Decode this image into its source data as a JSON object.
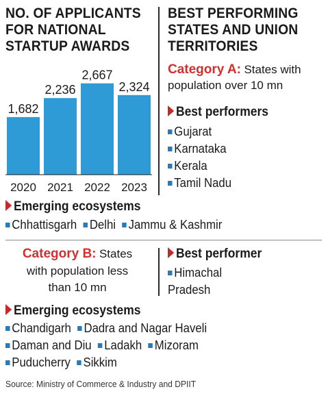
{
  "chart": {
    "title_lines": [
      "NO. OF APPLICANTS",
      "FOR NATIONAL",
      "STARTUP AWARDS"
    ]
  },
  "chart_data": {
    "type": "bar",
    "categories": [
      "2020",
      "2021",
      "2022",
      "2023"
    ],
    "values": [
      1682,
      2236,
      2667,
      2324
    ],
    "value_labels": [
      "1,682",
      "2,236",
      "2,667",
      "2,324"
    ],
    "title": "NO. OF APPLICANTS FOR NATIONAL STARTUP AWARDS",
    "xlabel": "",
    "ylabel": "",
    "ylim": [
      0,
      3000
    ],
    "grid": false,
    "bar_color": "#2e9bd6"
  },
  "right": {
    "title_lines": [
      "BEST PERFORMING",
      "STATES AND UNION",
      "TERRITORIES"
    ],
    "category_a_label": "Category A:",
    "category_a_text_1": "States with",
    "category_a_text_2": "population over 10 mn",
    "best_performers_heading": "Best performers",
    "best_performers": [
      "Gujarat",
      "Karnataka",
      "Kerala",
      "Tamil Nadu"
    ]
  },
  "emerging_a": {
    "heading": "Emerging ecosystems",
    "items": [
      "Chhattisgarh",
      "Delhi",
      "Jammu & Kashmir"
    ]
  },
  "category_b": {
    "label": "Category B:",
    "text_1": "States",
    "text_2": "with population less",
    "text_3": "than 10 mn",
    "best_performer_heading": "Best performer",
    "best_performer_1": "Himachal",
    "best_performer_2": "Pradesh"
  },
  "emerging_b": {
    "heading": "Emerging ecosystems",
    "row1": [
      "Chandigarh",
      "Dadra and Nagar Haveli"
    ],
    "row2": [
      "Daman and Diu",
      "Ladakh",
      "Mizoram"
    ],
    "row3": [
      "Puducherry",
      "Sikkim"
    ]
  },
  "source": "Source: Ministry of Commerce & Industry and DPIIT",
  "colors": {
    "accent_red": "#d32f2f",
    "bar_blue": "#2e9bd6",
    "bullet_blue": "#2a7ab8"
  }
}
